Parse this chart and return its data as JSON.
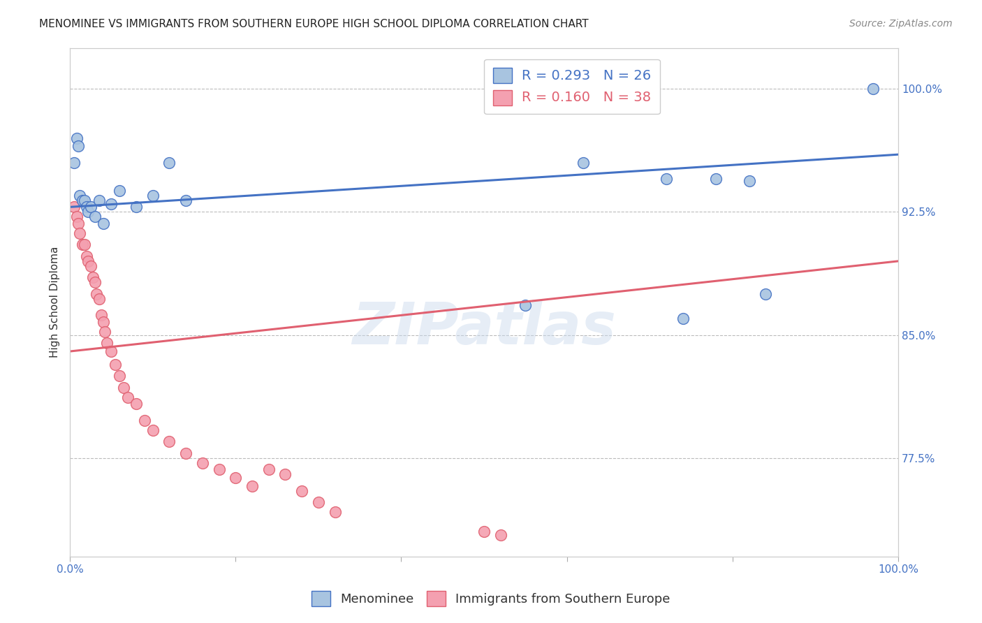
{
  "title": "MENOMINEE VS IMMIGRANTS FROM SOUTHERN EUROPE HIGH SCHOOL DIPLOMA CORRELATION CHART",
  "source": "Source: ZipAtlas.com",
  "ylabel": "High School Diploma",
  "watermark": "ZIPatlas",
  "blue_label": "Menominee",
  "pink_label": "Immigrants from Southern Europe",
  "blue_R": 0.293,
  "blue_N": 26,
  "pink_R": 0.16,
  "pink_N": 38,
  "xlim": [
    0.0,
    1.0
  ],
  "ylim": [
    0.715,
    1.025
  ],
  "yticks": [
    0.775,
    0.85,
    0.925,
    1.0
  ],
  "ytick_labels": [
    "77.5%",
    "85.0%",
    "92.5%",
    "100.0%"
  ],
  "xticks": [
    0.0,
    0.2,
    0.4,
    0.6,
    0.8,
    1.0
  ],
  "xtick_labels": [
    "0.0%",
    "",
    "",
    "",
    "",
    "100.0%"
  ],
  "blue_x": [
    0.005,
    0.008,
    0.01,
    0.012,
    0.015,
    0.018,
    0.02,
    0.022,
    0.025,
    0.03,
    0.035,
    0.04,
    0.05,
    0.06,
    0.08,
    0.1,
    0.12,
    0.14,
    0.55,
    0.62,
    0.72,
    0.74,
    0.78,
    0.82,
    0.84,
    0.97
  ],
  "blue_y": [
    0.955,
    0.97,
    0.965,
    0.935,
    0.932,
    0.932,
    0.928,
    0.925,
    0.928,
    0.922,
    0.932,
    0.918,
    0.93,
    0.938,
    0.928,
    0.935,
    0.955,
    0.932,
    0.868,
    0.955,
    0.945,
    0.86,
    0.945,
    0.944,
    0.875,
    1.0
  ],
  "pink_x": [
    0.005,
    0.008,
    0.01,
    0.012,
    0.015,
    0.018,
    0.02,
    0.022,
    0.025,
    0.028,
    0.03,
    0.032,
    0.035,
    0.038,
    0.04,
    0.042,
    0.045,
    0.05,
    0.055,
    0.06,
    0.065,
    0.07,
    0.08,
    0.09,
    0.1,
    0.12,
    0.14,
    0.16,
    0.18,
    0.2,
    0.22,
    0.24,
    0.26,
    0.28,
    0.3,
    0.32,
    0.5,
    0.52
  ],
  "pink_y": [
    0.928,
    0.922,
    0.918,
    0.912,
    0.905,
    0.905,
    0.898,
    0.895,
    0.892,
    0.885,
    0.882,
    0.875,
    0.872,
    0.862,
    0.858,
    0.852,
    0.845,
    0.84,
    0.832,
    0.825,
    0.818,
    0.812,
    0.808,
    0.798,
    0.792,
    0.785,
    0.778,
    0.772,
    0.768,
    0.763,
    0.758,
    0.768,
    0.765,
    0.755,
    0.748,
    0.742,
    0.73,
    0.728
  ],
  "blue_color": "#A8C4E0",
  "pink_color": "#F4A0B0",
  "blue_line_color": "#4472C4",
  "pink_line_color": "#E06070",
  "title_fontsize": 11,
  "axis_label_fontsize": 11,
  "tick_fontsize": 11,
  "legend_fontsize": 13,
  "source_fontsize": 10,
  "background_color": "#FFFFFF",
  "grid_color": "#BBBBBB"
}
